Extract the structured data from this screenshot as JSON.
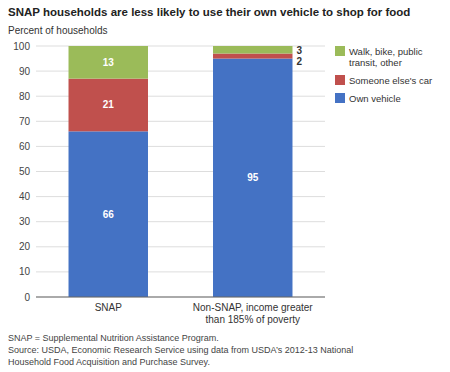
{
  "chart_data": {
    "type": "bar",
    "stacked": true,
    "title": "SNAP households are less likely to use their own vehicle to shop for food",
    "ylabel": "Percent of households",
    "categories": [
      "SNAP",
      "Non-SNAP, income greater\nthan 185% of poverty"
    ],
    "series": [
      {
        "name": "Own vehicle",
        "color": "#4472C4",
        "values": [
          66,
          95
        ]
      },
      {
        "name": "Someone else's car",
        "color": "#C0504D",
        "values": [
          21,
          2
        ]
      },
      {
        "name": "Walk, bike, public\ntransit, other",
        "color": "#9BBB59",
        "values": [
          13,
          3
        ]
      }
    ],
    "ylim": [
      0,
      100
    ],
    "yticks": [
      0,
      10,
      20,
      30,
      40,
      50,
      60,
      70,
      80,
      90,
      100
    ],
    "grid": true,
    "legend": "upper right",
    "data_labels": true,
    "annotations": [
      "SNAP = Supplemental Nutrition Assistance Program.\nSource: USDA, Economic Research Service using data from USDA’s 2012-13 National\nHousehold Food Acquisition and Purchase Survey."
    ]
  }
}
